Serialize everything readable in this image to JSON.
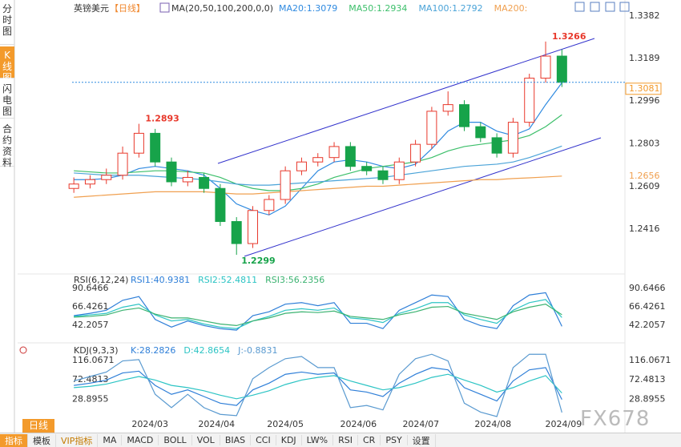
{
  "sidebar": [
    "分时图",
    "K线图",
    "闪电图",
    "合约资料"
  ],
  "period": "日线",
  "toolbar": [
    "指标",
    "模板",
    "VIP指标",
    "MA",
    "MACD",
    "BOLL",
    "VOL",
    "BIAS",
    "CCI",
    "KDJ",
    "LW%",
    "RSI",
    "CR",
    "PSY",
    "设置"
  ],
  "watermark": "FX678",
  "chart_data": {
    "type": "candlestick",
    "title": "英镑美元",
    "subtitle": "【日线】",
    "ma_label": "MA(20,50,100,200,0,0)",
    "xlim": [
      -0.5,
      30.5
    ],
    "xticks": [
      {
        "value": 4.68,
        "label": "2024/03"
      },
      {
        "value": 8.77,
        "label": "2024/04"
      },
      {
        "value": 13.0,
        "label": "2024/05"
      },
      {
        "value": 17.49,
        "label": "2024/06"
      },
      {
        "value": 21.33,
        "label": "2024/07"
      },
      {
        "value": 25.76,
        "label": "2024/08"
      },
      {
        "value": 30.1,
        "label": "2024/09"
      }
    ],
    "ylim": [
      1.2274,
      1.3418
    ],
    "yticks": [
      1.3382,
      1.3189,
      1.2996,
      1.2803,
      1.2609,
      1.2416
    ],
    "open": [
      1.26,
      1.262,
      1.264,
      1.266,
      1.276,
      1.285,
      1.272,
      1.263,
      1.265,
      1.26,
      1.245,
      1.235,
      1.25,
      1.255,
      1.268,
      1.272,
      1.274,
      1.279,
      1.27,
      1.268,
      1.264,
      1.272,
      1.28,
      1.295,
      1.298,
      1.288,
      1.283,
      1.276,
      1.29,
      1.31,
      1.32
    ],
    "high": [
      1.265,
      1.266,
      1.269,
      1.279,
      1.2893,
      1.287,
      1.274,
      1.268,
      1.267,
      1.262,
      1.247,
      1.252,
      1.257,
      1.27,
      1.274,
      1.276,
      1.281,
      1.281,
      1.272,
      1.27,
      1.274,
      1.282,
      1.297,
      1.304,
      1.3,
      1.29,
      1.285,
      1.292,
      1.312,
      1.3266,
      1.323
    ],
    "low": [
      1.258,
      1.26,
      1.262,
      1.264,
      1.274,
      1.27,
      1.261,
      1.261,
      1.258,
      1.243,
      1.2299,
      1.233,
      1.248,
      1.253,
      1.266,
      1.27,
      1.272,
      1.268,
      1.266,
      1.262,
      1.262,
      1.27,
      1.278,
      1.293,
      1.286,
      1.281,
      1.274,
      1.274,
      1.288,
      1.308,
      1.306
    ],
    "close": [
      1.262,
      1.264,
      1.266,
      1.276,
      1.285,
      1.272,
      1.263,
      1.265,
      1.26,
      1.245,
      1.235,
      1.25,
      1.255,
      1.268,
      1.272,
      1.274,
      1.279,
      1.27,
      1.268,
      1.264,
      1.272,
      1.28,
      1.295,
      1.298,
      1.288,
      1.283,
      1.276,
      1.29,
      1.31,
      1.32,
      1.3081
    ],
    "up_color": "#e8382b",
    "down_color": "#17a34a",
    "series": [
      {
        "name": "MA20",
        "legend": "MA20:1.3079",
        "color": "#2f8ae0",
        "values": [
          1.264,
          1.264,
          1.2645,
          1.266,
          1.269,
          1.27,
          1.269,
          1.268,
          1.266,
          1.26,
          1.253,
          1.25,
          1.248,
          1.252,
          1.26,
          1.268,
          1.272,
          1.273,
          1.272,
          1.27,
          1.269,
          1.271,
          1.278,
          1.286,
          1.29,
          1.29,
          1.286,
          1.284,
          1.287,
          1.298,
          1.3079
        ]
      },
      {
        "name": "MA50",
        "legend": "MA50:1.2934",
        "color": "#3cbf6a",
        "values": [
          1.268,
          1.2675,
          1.267,
          1.267,
          1.2675,
          1.268,
          1.268,
          1.2675,
          1.267,
          1.265,
          1.262,
          1.26,
          1.259,
          1.259,
          1.26,
          1.262,
          1.265,
          1.267,
          1.269,
          1.27,
          1.271,
          1.272,
          1.274,
          1.277,
          1.279,
          1.28,
          1.281,
          1.282,
          1.284,
          1.288,
          1.2934
        ]
      },
      {
        "name": "MA100",
        "legend": "MA100:1.2792",
        "color": "#4aa3d8",
        "values": [
          1.267,
          1.2665,
          1.266,
          1.266,
          1.266,
          1.2655,
          1.265,
          1.2645,
          1.264,
          1.263,
          1.262,
          1.2615,
          1.2615,
          1.262,
          1.2625,
          1.263,
          1.2635,
          1.264,
          1.2645,
          1.265,
          1.266,
          1.267,
          1.268,
          1.269,
          1.27,
          1.2705,
          1.271,
          1.272,
          1.274,
          1.2765,
          1.2792
        ]
      },
      {
        "name": "MA200",
        "legend": "MA200:",
        "color": "#f0a050",
        "values": [
          1.256,
          1.2565,
          1.257,
          1.2575,
          1.258,
          1.2585,
          1.2585,
          1.2585,
          1.2585,
          1.258,
          1.2575,
          1.2575,
          1.258,
          1.2585,
          1.259,
          1.2595,
          1.26,
          1.2605,
          1.261,
          1.261,
          1.2615,
          1.262,
          1.2625,
          1.263,
          1.2635,
          1.264,
          1.264,
          1.2645,
          1.2648,
          1.2652,
          1.2656
        ]
      }
    ],
    "rsi": {
      "title": "RSI(6,12,24)",
      "ylim": [
        33,
        99
      ],
      "yticks": [
        90.6466,
        66.4261,
        42.2057
      ],
      "series": [
        {
          "legend": "RSI1:40.9381",
          "color": "#2f7fd8",
          "values": [
            55,
            58,
            62,
            75,
            80,
            50,
            40,
            48,
            42,
            38,
            36,
            55,
            60,
            70,
            72,
            68,
            72,
            45,
            45,
            38,
            62,
            72,
            82,
            80,
            50,
            42,
            38,
            68,
            82,
            85,
            40.9381
          ]
        },
        {
          "legend": "RSI2:52.4811",
          "color": "#2cc4c4",
          "values": [
            54,
            56,
            58,
            66,
            70,
            56,
            48,
            50,
            44,
            40,
            38,
            48,
            54,
            62,
            64,
            62,
            65,
            52,
            50,
            46,
            58,
            64,
            72,
            72,
            56,
            50,
            45,
            62,
            72,
            76,
            52.4811
          ]
        },
        {
          "legend": "RSI3:56.2356",
          "color": "#3cb371",
          "values": [
            53,
            54,
            56,
            62,
            65,
            57,
            52,
            52,
            48,
            44,
            42,
            48,
            52,
            58,
            60,
            59,
            61,
            54,
            52,
            50,
            56,
            60,
            66,
            67,
            58,
            54,
            50,
            60,
            66,
            70,
            56.2356
          ]
        }
      ]
    },
    "kdj": {
      "title": "KDJ(9,3,3)",
      "ylim": [
        -10,
        134
      ],
      "yticks": [
        116.0671,
        72.4813,
        28.8955
      ],
      "series": [
        {
          "legend": "K:28.2826",
          "color": "#2f7fd8",
          "values": [
            60,
            65,
            72,
            88,
            92,
            60,
            40,
            50,
            35,
            20,
            15,
            50,
            65,
            85,
            90,
            85,
            88,
            50,
            45,
            35,
            65,
            85,
            100,
            95,
            55,
            40,
            25,
            70,
            95,
            100,
            28.2826
          ]
        },
        {
          "legend": "D:42.8654",
          "color": "#2cc4c4",
          "values": [
            55,
            58,
            63,
            72,
            80,
            72,
            60,
            55,
            48,
            38,
            30,
            38,
            48,
            62,
            72,
            78,
            82,
            70,
            60,
            50,
            55,
            65,
            78,
            85,
            72,
            60,
            45,
            55,
            70,
            82,
            42.8654
          ]
        },
        {
          "legend": "J:-0.8831",
          "color": "#5a9ad0",
          "values": [
            70,
            80,
            90,
            115,
            118,
            40,
            10,
            40,
            10,
            -5,
            -8,
            75,
            100,
            120,
            125,
            100,
            100,
            10,
            15,
            5,
            85,
            120,
            130,
            115,
            20,
            0,
            -10,
            100,
            130,
            130,
            -0.8831
          ]
        }
      ]
    }
  }
}
